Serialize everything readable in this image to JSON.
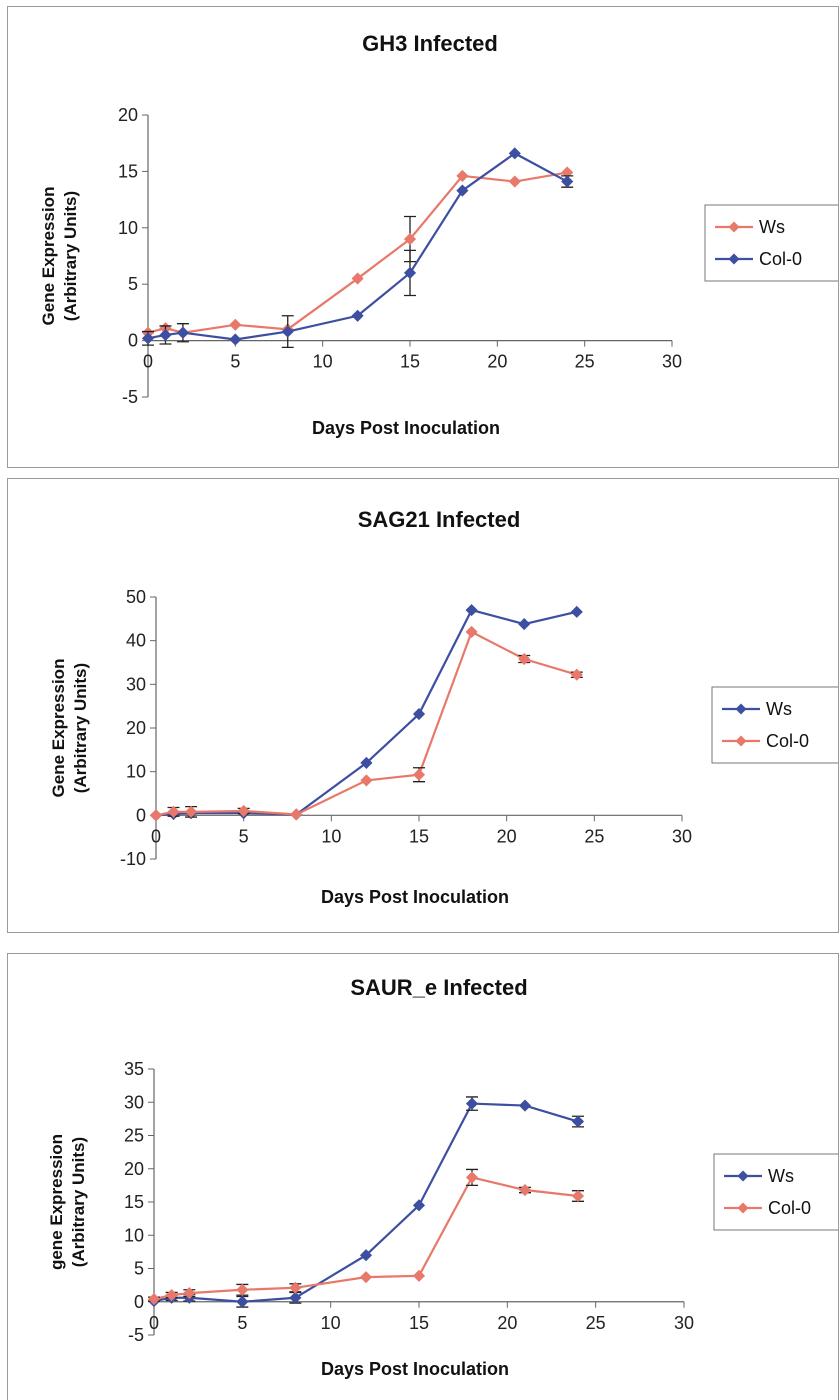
{
  "chart_data": [
    {
      "type": "line",
      "title": "GH3 Infected",
      "xlabel": "Days Post Inoculation",
      "ylabel_lines": [
        "Gene Expression",
        "(Arbitrary Units)"
      ],
      "xlim": [
        0,
        30
      ],
      "ylim": [
        -5,
        20
      ],
      "xticks": [
        0,
        5,
        10,
        15,
        20,
        25,
        30
      ],
      "yticks": [
        -5,
        0,
        5,
        10,
        15,
        20
      ],
      "legend_position": "right",
      "series": [
        {
          "name": "Ws",
          "color": "#e8786a",
          "marker": "diamond",
          "x": [
            0,
            1,
            2,
            5,
            8,
            12,
            15,
            18,
            21,
            24
          ],
          "y": [
            0.7,
            1.1,
            0.7,
            1.4,
            1.0,
            5.5,
            9.0,
            14.6,
            14.1,
            14.9
          ],
          "err": [
            0,
            0,
            0,
            0,
            0,
            0,
            2.0,
            0,
            0,
            0
          ]
        },
        {
          "name": "Col-0",
          "color": "#3d4fa0",
          "marker": "diamond",
          "x": [
            0,
            1,
            2,
            5,
            8,
            12,
            15,
            18,
            21,
            24
          ],
          "y": [
            0.2,
            0.5,
            0.7,
            0.1,
            0.8,
            2.2,
            6.0,
            13.3,
            16.6,
            14.1
          ],
          "err": [
            0.6,
            0.8,
            0.8,
            0,
            1.4,
            0,
            2.0,
            0,
            0,
            0.5
          ]
        }
      ]
    },
    {
      "type": "line",
      "title": "SAG21 Infected",
      "xlabel": "Days Post Inoculation",
      "ylabel_lines": [
        "Gene Expression",
        "(Arbitrary Units)"
      ],
      "xlim": [
        0,
        30
      ],
      "ylim": [
        -10,
        50
      ],
      "xticks": [
        0,
        5,
        10,
        15,
        20,
        25,
        30
      ],
      "yticks": [
        -10,
        0,
        10,
        20,
        30,
        40,
        50
      ],
      "legend_position": "right",
      "series": [
        {
          "name": "Ws",
          "color": "#3d4fa0",
          "marker": "diamond",
          "x": [
            0,
            1,
            2,
            5,
            8,
            12,
            15,
            18,
            21,
            24
          ],
          "y": [
            0,
            0.3,
            0.5,
            0.5,
            0.2,
            12.0,
            23.2,
            47.0,
            43.8,
            46.6
          ],
          "err": [
            0,
            0,
            0,
            0,
            0,
            0,
            0,
            0,
            0,
            0
          ]
        },
        {
          "name": "Col-0",
          "color": "#e8786a",
          "marker": "diamond",
          "x": [
            0,
            1,
            2,
            5,
            8,
            12,
            15,
            18,
            21,
            24
          ],
          "y": [
            0,
            0.8,
            0.8,
            1.0,
            0.2,
            8.0,
            9.3,
            42.0,
            35.8,
            32.2
          ],
          "err": [
            0,
            1.0,
            1.2,
            0.6,
            0,
            0,
            1.6,
            0,
            0.8,
            0.6
          ]
        }
      ]
    },
    {
      "type": "line",
      "title": "SAUR_e Infected",
      "xlabel": "Days Post Inoculation",
      "ylabel_lines": [
        "gene Expression",
        "(Arbitrary Units)"
      ],
      "xlim": [
        0,
        30
      ],
      "ylim": [
        -5,
        35
      ],
      "xticks": [
        0,
        5,
        10,
        15,
        20,
        25,
        30
      ],
      "yticks": [
        -5,
        0,
        5,
        10,
        15,
        20,
        25,
        30,
        35
      ],
      "legend_position": "right",
      "series": [
        {
          "name": "Ws",
          "color": "#3d4fa0",
          "marker": "diamond",
          "x": [
            0,
            1,
            2,
            5,
            8,
            12,
            15,
            18,
            21,
            24
          ],
          "y": [
            0.1,
            0.6,
            0.6,
            0.0,
            0.6,
            7.0,
            14.5,
            29.8,
            29.5,
            27.1
          ],
          "err": [
            0,
            0.4,
            0.5,
            0.8,
            0.8,
            0,
            0,
            1.0,
            0,
            0.8
          ]
        },
        {
          "name": "Col-0",
          "color": "#e8786a",
          "marker": "diamond",
          "x": [
            0,
            1,
            2,
            5,
            8,
            12,
            15,
            18,
            21,
            24
          ],
          "y": [
            0.4,
            1.0,
            1.3,
            1.8,
            2.1,
            3.7,
            3.9,
            18.7,
            16.8,
            15.9
          ],
          "err": [
            0.3,
            0.4,
            0.5,
            0.8,
            0.6,
            0,
            0,
            1.2,
            0.4,
            0.8
          ]
        }
      ]
    }
  ]
}
